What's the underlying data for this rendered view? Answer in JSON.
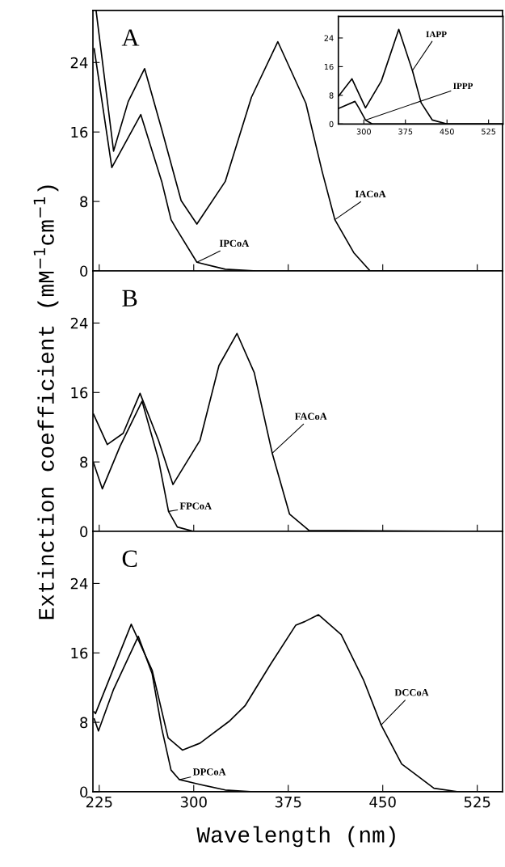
{
  "chart_data": [
    {
      "type": "line",
      "title": "A",
      "xlim": [
        220,
        545
      ],
      "ylim": [
        0,
        30
      ],
      "xticks": [
        225,
        300,
        375,
        450,
        525
      ],
      "yticks": [
        0,
        8,
        16,
        24
      ],
      "tick_labels": "y",
      "series": [
        {
          "name": "IACoA",
          "color": "#000000",
          "x": [
            222.5,
            236.4,
            248,
            261,
            274.6,
            290,
            302.5,
            325,
            345.8,
            366.7,
            389,
            402,
            412,
            427,
            440,
            470,
            545
          ],
          "values": [
            30,
            13.8,
            19.5,
            23.3,
            16.3,
            8.1,
            5.4,
            10.3,
            20,
            26.4,
            19.3,
            11.4,
            5.9,
            2.1,
            0,
            0,
            0
          ]
        },
        {
          "name": "IPCoA",
          "color": "#000000",
          "x": [
            221,
            235,
            258,
            274.6,
            282,
            286,
            302.5,
            325,
            350,
            545
          ],
          "values": [
            25.6,
            11.9,
            18.0,
            10.3,
            5.9,
            4.9,
            1.0,
            0.2,
            0,
            0
          ]
        }
      ]
    },
    {
      "type": "line",
      "xlim": [
        254,
        551
      ],
      "ylim": [
        0,
        30
      ],
      "xticks": [
        300,
        375,
        450,
        525
      ],
      "yticks": [
        0,
        8,
        16,
        24
      ],
      "series": [
        {
          "name": "IAPP",
          "color": "#000000",
          "x": [
            254,
            278.5,
            303,
            331.6,
            363,
            387.6,
            403.4,
            423.6,
            450,
            551
          ],
          "values": [
            7.7,
            12.6,
            4.5,
            12.0,
            26.4,
            14.9,
            5.9,
            1.1,
            0,
            0
          ]
        },
        {
          "name": "IPPP",
          "color": "#000000",
          "x": [
            254,
            284,
            291,
            303,
            315,
            551
          ],
          "values": [
            4.3,
            6.3,
            4.5,
            1.1,
            0,
            0
          ]
        }
      ]
    },
    {
      "type": "line",
      "title": "B",
      "ylabel": "Extinction coefficient (mM$^{−1}$cm$^{−1}$)",
      "xlim": [
        220,
        545
      ],
      "ylim": [
        0,
        30
      ],
      "xticks": [
        225,
        300,
        375,
        450,
        525
      ],
      "yticks": [
        0,
        8,
        16,
        24
      ],
      "tick_labels": "y",
      "series": [
        {
          "name": "FACoA",
          "color": "#000000",
          "x": [
            220.5,
            231.4,
            244,
            257.4,
            272,
            283.5,
            305,
            320,
            334.3,
            348,
            362.3,
            376,
            391.5,
            545
          ],
          "values": [
            13.5,
            10.0,
            11.3,
            15.9,
            10.5,
            5.4,
            10.5,
            19.1,
            22.8,
            18.3,
            9.0,
            2.0,
            0.1,
            0
          ]
        },
        {
          "name": "FPCoA",
          "color": "#000000",
          "x": [
            220.5,
            227.5,
            241.5,
            259,
            272,
            280,
            287,
            300,
            545
          ],
          "values": [
            7.9,
            4.9,
            9.8,
            15.0,
            8.3,
            2.3,
            0.5,
            0,
            0
          ]
        }
      ]
    },
    {
      "type": "line",
      "title": "C",
      "xlabel": "Wavelength (nm)",
      "xlim": [
        220,
        545
      ],
      "ylim": [
        0,
        30
      ],
      "xticks": [
        225,
        300,
        375,
        450,
        525
      ],
      "yticks": [
        0,
        8,
        16,
        24
      ],
      "series": [
        {
          "name": "DCCoA",
          "color": "#000000",
          "x": [
            221,
            222,
            250.4,
            267,
            279.7,
            291,
            305,
            328,
            340.7,
            361,
            381,
            388,
            399,
            417,
            434.7,
            448.7,
            465,
            490.6,
            510,
            545
          ],
          "values": [
            9.2,
            9.0,
            19.3,
            14.0,
            6.2,
            4.8,
            5.6,
            8.1,
            9.9,
            14.7,
            19.2,
            19.6,
            20.4,
            18.1,
            12.9,
            7.7,
            3.2,
            0.4,
            0,
            0
          ]
        },
        {
          "name": "DPCoA",
          "color": "#000000",
          "x": [
            221,
            224.4,
            236.4,
            256,
            267,
            274.6,
            282,
            288.6,
            303,
            325,
            345,
            545
          ],
          "values": [
            8.4,
            7.0,
            11.8,
            17.9,
            13.6,
            7.3,
            2.5,
            1.4,
            0.9,
            0.2,
            0,
            0
          ]
        }
      ]
    }
  ]
}
